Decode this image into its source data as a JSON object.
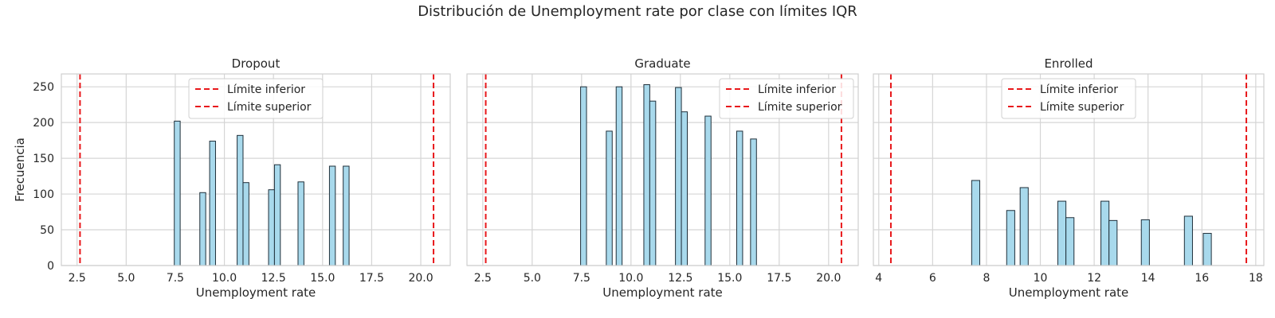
{
  "figure": {
    "suptitle": "Distribución de Unemployment rate por clase con límites IQR",
    "ylabel": "Frecuencia",
    "xlabel": "Unemployment rate",
    "bar_color": "#a8d9ec",
    "bar_edge_color": "#1f2f3a",
    "limit_color": "#e8181b",
    "legend": [
      "Límite inferior",
      "Límite superior"
    ]
  },
  "chart_data": [
    {
      "type": "bar",
      "title": "Dropout",
      "xlim": [
        1.7,
        21.5
      ],
      "ylim": [
        0,
        268
      ],
      "xticks": [
        2.5,
        5.0,
        7.5,
        10.0,
        12.5,
        15.0,
        17.5,
        20.0
      ],
      "xtick_labels": [
        "2.5",
        "5.0",
        "7.5",
        "10.0",
        "12.5",
        "15.0",
        "17.5",
        "20.0"
      ],
      "yticks": [
        0,
        50,
        100,
        150,
        200,
        250
      ],
      "bin_width": 0.3,
      "x": [
        7.6,
        8.9,
        9.4,
        10.8,
        11.1,
        12.4,
        12.7,
        13.9,
        15.5,
        16.2
      ],
      "values": [
        202,
        102,
        174,
        182,
        116,
        106,
        141,
        117,
        139,
        139
      ],
      "lower_limit": 2.65,
      "upper_limit": 20.65,
      "legend_position": "upper center"
    },
    {
      "type": "bar",
      "title": "Graduate",
      "xlim": [
        1.7,
        21.5
      ],
      "ylim": [
        0,
        268
      ],
      "xticks": [
        2.5,
        5.0,
        7.5,
        10.0,
        12.5,
        15.0,
        17.5,
        20.0
      ],
      "xtick_labels": [
        "2.5",
        "5.0",
        "7.5",
        "10.0",
        "12.5",
        "15.0",
        "17.5",
        "20.0"
      ],
      "yticks": [
        0,
        50,
        100,
        150,
        200,
        250
      ],
      "bin_width": 0.3,
      "x": [
        7.6,
        8.9,
        9.4,
        10.8,
        11.1,
        12.4,
        12.7,
        13.9,
        15.5,
        16.2
      ],
      "values": [
        250,
        188,
        250,
        253,
        230,
        249,
        215,
        209,
        188,
        177
      ],
      "lower_limit": 2.65,
      "upper_limit": 20.65,
      "legend_position": "upper right"
    },
    {
      "type": "bar",
      "title": "Enrolled",
      "xlim": [
        3.8,
        18.3
      ],
      "ylim": [
        0,
        268
      ],
      "xticks": [
        4,
        6,
        8,
        10,
        12,
        14,
        16,
        18
      ],
      "xtick_labels": [
        "4",
        "6",
        "8",
        "10",
        "12",
        "14",
        "16",
        "18"
      ],
      "yticks": [
        0,
        50,
        100,
        150,
        200,
        250
      ],
      "bin_width": 0.3,
      "x": [
        7.6,
        8.9,
        9.4,
        10.8,
        11.1,
        12.4,
        12.7,
        13.9,
        15.5,
        16.2
      ],
      "values": [
        119,
        77,
        109,
        90,
        67,
        90,
        63,
        64,
        69,
        45
      ],
      "lower_limit": 4.45,
      "upper_limit": 17.65,
      "legend_position": "upper center"
    }
  ]
}
